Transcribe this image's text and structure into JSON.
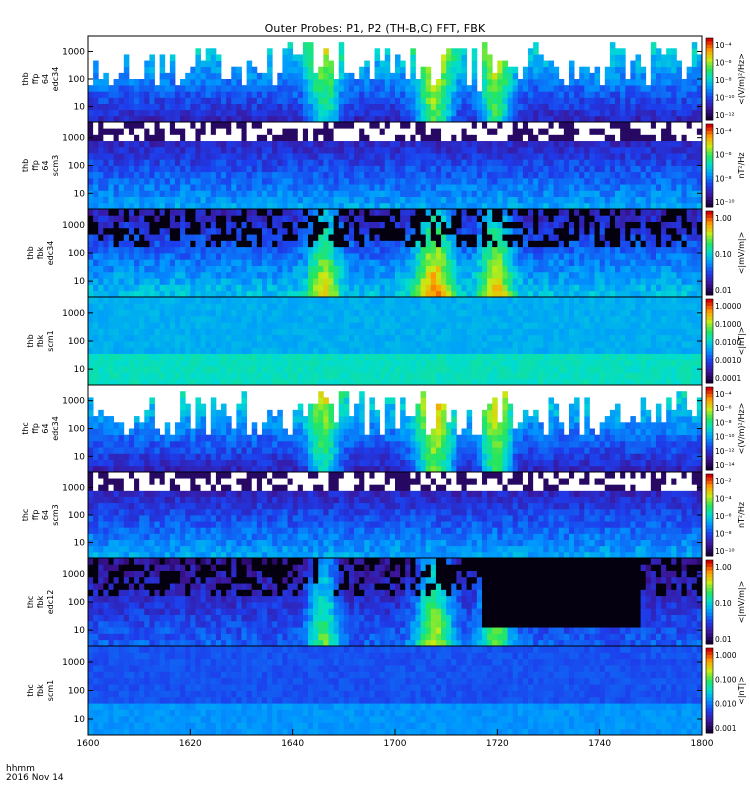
{
  "title": "Outer Probes: P1, P2 (TH-B,C) FFT, FBK",
  "time_axis": {
    "labels": [
      "1600",
      "1620",
      "1640",
      "1700",
      "1720",
      "1740",
      "1800"
    ],
    "unit_label": "hhmm",
    "date_label": "2016 Nov 14"
  },
  "chart_data": [
    {
      "type": "heatmap",
      "panel_label": [
        "thb",
        "ffp",
        "64",
        "edc34"
      ],
      "y_ticks": [
        "1000",
        "100",
        "10"
      ],
      "y_scale": "log",
      "colorbar_ticks": [
        "10⁻⁴",
        "10⁻⁶",
        "10⁻⁸",
        "10⁻¹⁰",
        "10⁻¹²"
      ],
      "colorbar_label": "<(V/m)²/Hz>"
    },
    {
      "type": "heatmap",
      "panel_label": [
        "thb",
        "ffp",
        "64",
        "scm3"
      ],
      "y_ticks": [
        "1000",
        "100",
        "10"
      ],
      "y_scale": "log",
      "colorbar_ticks": [
        "10⁻⁴",
        "10⁻⁶",
        "10⁻⁸",
        "10⁻¹⁰"
      ],
      "colorbar_label": "nT²/Hz"
    },
    {
      "type": "heatmap",
      "panel_label": [
        "thb",
        "fbk",
        "edc34"
      ],
      "y_ticks": [
        "1000",
        "100",
        "10"
      ],
      "y_scale": "log",
      "colorbar_ticks": [
        "1.00",
        "0.10",
        "0.01"
      ],
      "colorbar_label": "<|mV/m|>"
    },
    {
      "type": "heatmap",
      "panel_label": [
        "thb",
        "fbk",
        "scm1"
      ],
      "y_ticks": [
        "1000",
        "100",
        "10"
      ],
      "y_scale": "log",
      "colorbar_ticks": [
        "1.0000",
        "0.1000",
        "0.0100",
        "0.0010",
        "0.0001"
      ],
      "colorbar_label": "<|nT|>"
    },
    {
      "type": "heatmap",
      "panel_label": [
        "thc",
        "ffp",
        "64",
        "edc34"
      ],
      "y_ticks": [
        "1000",
        "100",
        "10"
      ],
      "y_scale": "log",
      "colorbar_ticks": [
        "10⁻⁴",
        "10⁻⁶",
        "10⁻⁸",
        "10⁻¹⁰",
        "10⁻¹²",
        "10⁻¹⁴"
      ],
      "colorbar_label": "<(V/m)²/Hz>"
    },
    {
      "type": "heatmap",
      "panel_label": [
        "thc",
        "ffp",
        "64",
        "scm3"
      ],
      "y_ticks": [
        "1000",
        "100",
        "10"
      ],
      "y_scale": "log",
      "colorbar_ticks": [
        "10⁻²",
        "10⁻⁴",
        "10⁻⁶",
        "10⁻⁸",
        "10⁻¹⁰"
      ],
      "colorbar_label": "nT²/Hz"
    },
    {
      "type": "heatmap",
      "panel_label": [
        "thc",
        "fbk",
        "edc12"
      ],
      "y_ticks": [
        "1000",
        "100",
        "10"
      ],
      "y_scale": "log",
      "colorbar_ticks": [
        "1.00",
        "0.10",
        "0.01"
      ],
      "colorbar_label": "<|mV/m|>"
    },
    {
      "type": "heatmap",
      "panel_label": [
        "thc",
        "fbk",
        "scm1"
      ],
      "y_ticks": [
        "1000",
        "100",
        "10"
      ],
      "y_scale": "log",
      "colorbar_ticks": [
        "1.000",
        "0.100",
        "0.010",
        "0.001"
      ],
      "colorbar_label": "<|nT|>"
    }
  ]
}
